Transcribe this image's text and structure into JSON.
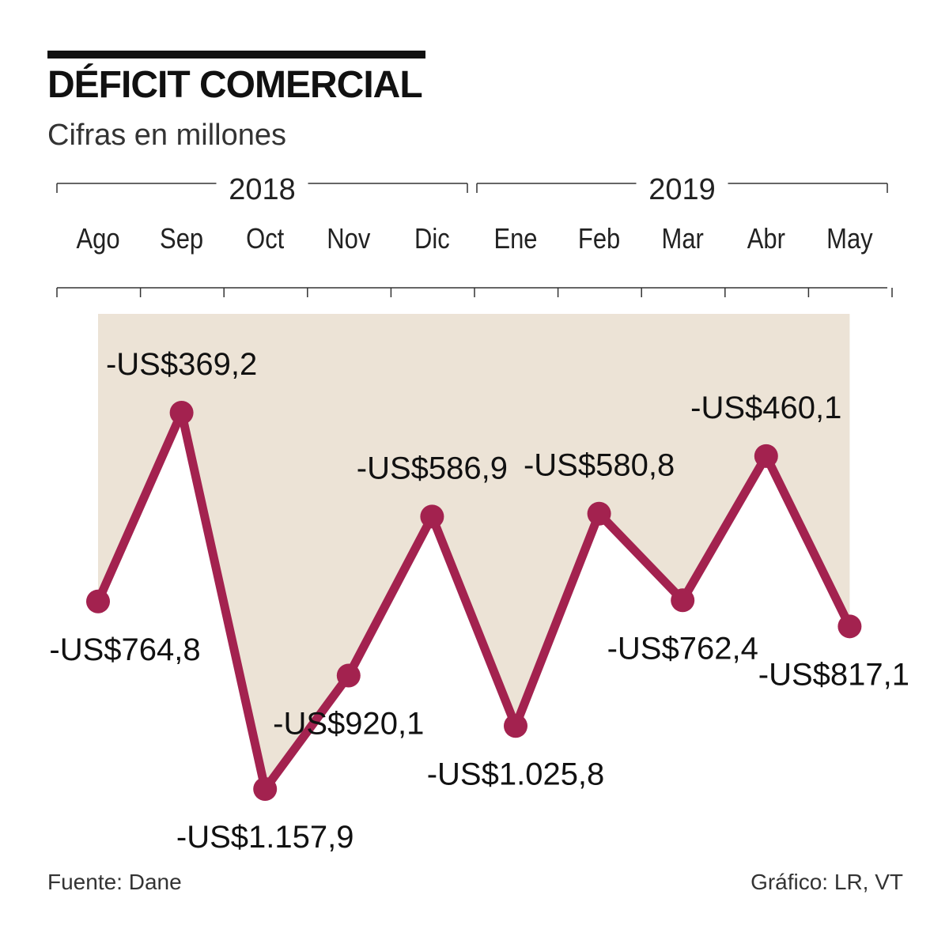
{
  "title": "DÉFICIT COMERCIAL",
  "subtitle": "Cifras en millones",
  "source": "Fuente: Dane",
  "credit": "Gráfico: LR, VT",
  "colors": {
    "line": "#a3224f",
    "area": "#ece3d6",
    "text": "#111111"
  },
  "chart_data": {
    "type": "line",
    "year_groups": [
      {
        "label": "2018",
        "months": [
          "Ago",
          "Sep",
          "Oct",
          "Nov",
          "Dic"
        ]
      },
      {
        "label": "2019",
        "months": [
          "Ene",
          "Feb",
          "Mar",
          "Abr",
          "May"
        ]
      }
    ],
    "categories": [
      "Ago",
      "Sep",
      "Oct",
      "Nov",
      "Dic",
      "Ene",
      "Feb",
      "Mar",
      "Abr",
      "May"
    ],
    "values": [
      -764.8,
      -369.2,
      -1157.9,
      -920.1,
      -586.9,
      -1025.8,
      -580.8,
      -762.4,
      -460.1,
      -817.1
    ],
    "labels": [
      "-US$764,8",
      "-US$369,2",
      "-US$1.157,9",
      "-US$920,1",
      "-US$586,9",
      "-US$1.025,8",
      "-US$580,8",
      "-US$762,4",
      "-US$460,1",
      "-US$817,1"
    ],
    "label_position": [
      "below",
      "above",
      "below",
      "below",
      "above",
      "below",
      "above",
      "below",
      "above",
      "below"
    ]
  }
}
